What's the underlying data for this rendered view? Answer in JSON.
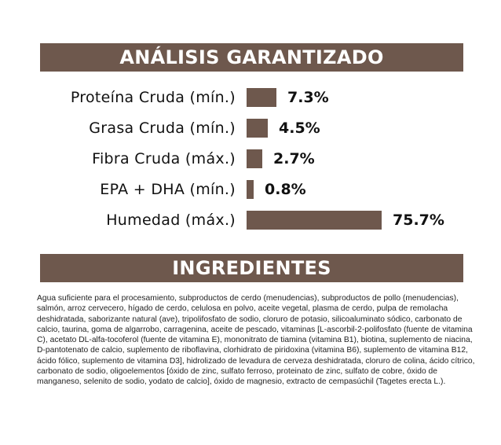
{
  "colors": {
    "accent": "#6e584d",
    "background": "#ffffff",
    "text": "#111111"
  },
  "analysis": {
    "title": "ANÁLISIS GARANTIZADO"
  },
  "chart_data": {
    "type": "bar",
    "orientation": "horizontal",
    "title": "ANÁLISIS GARANTIZADO",
    "categories": [
      "Proteína Cruda (mín.)",
      "Grasa Cruda (mín.)",
      "Fibra Cruda (máx.)",
      "EPA + DHA (mín.)",
      "Humedad (máx.)"
    ],
    "values": [
      7.3,
      4.5,
      2.7,
      0.8,
      75.7
    ],
    "value_labels": [
      "7.3%",
      "4.5%",
      "2.7%",
      "0.8%",
      "75.7%"
    ],
    "unit": "%",
    "grid": false,
    "color": "#6e584d"
  },
  "ingredients": {
    "title": "INGREDIENTES",
    "text": "Agua suficiente para el procesamiento, subproductos de cerdo (menudencias), subproductos de pollo (menudencias), salmón, arroz cervecero, hígado de cerdo, celulosa en polvo, aceite vegetal, plasma de cerdo, pulpa de remolacha deshidratada, saborizante natural (ave), tripolifosfato de sodio, cloruro de potasio, silicoaluminato sódico, carbonato de calcio, taurina, goma de algarrobo, carragenina, aceite de pescado, vitaminas [L-ascorbil-2-polifosfato (fuente de vitamina C), acetato DL-alfa-tocoferol (fuente de vitamina E), mononitrato de tiamina (vitamina B1), biotina, suplemento de niacina, D-pantotenato de calcio, suplemento de riboflavina, clorhidrato de piridoxina (vitamina B6), suplemento de vitamina B12, ácido fólico, suplemento de vitamina D3], hidrolizado de levadura de cerveza deshidratada, cloruro de colina, ácido cítrico, carbonato de sodio, oligoelementos [óxido de zinc, sulfato ferroso, proteinato de zinc, sulfato de cobre, óxido de manganeso, selenito de sodio, yodato de calcio], óxido de magnesio, extracto de cempasúchil (Tagetes erecta L.)."
  }
}
